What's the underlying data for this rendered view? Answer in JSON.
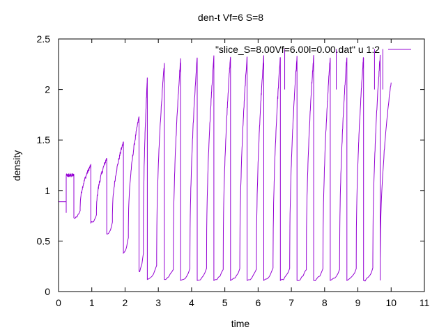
{
  "chart_data": {
    "type": "line",
    "title": "den-t Vf=6 S=8",
    "xlabel": "time",
    "ylabel": "density",
    "xlim": [
      0,
      11
    ],
    "ylim": [
      0,
      2.5
    ],
    "xticks": [
      "0",
      "1",
      "2",
      "3",
      "4",
      "5",
      "6",
      "7",
      "8",
      "9",
      "10",
      "11"
    ],
    "yticks": [
      "0",
      "0.5",
      "1",
      "1.5",
      "2",
      "2.5"
    ],
    "grid": false,
    "legend_position": "top-right",
    "series": [
      {
        "name": "\"slice_S=8.00Vf=6.00l=0.00.dat\" u 1:2",
        "color": "#9400d3",
        "cycles": [
          {
            "t_start": 0.0,
            "t_rise": 0.23,
            "high": 0.89,
            "t_peak_end": 0.23,
            "peak": 0.89,
            "low": 0.89
          },
          {
            "t_start": 0.23,
            "t_rise": 0.23,
            "high": 1.15,
            "t_peak_end": 0.46,
            "peak": 1.15,
            "low": 0.78
          },
          {
            "t_start": 0.46,
            "t_rise": 0.65,
            "high": 0.84,
            "t_peak_end": 0.97,
            "peak": 1.25,
            "low": 0.73
          },
          {
            "t_start": 0.97,
            "t_rise": 1.14,
            "high": 0.8,
            "t_peak_end": 1.45,
            "peak": 1.32,
            "low": 0.68
          },
          {
            "t_start": 1.45,
            "t_rise": 1.62,
            "high": 0.75,
            "t_peak_end": 1.95,
            "peak": 1.48,
            "low": 0.57
          },
          {
            "t_start": 1.95,
            "t_rise": 2.1,
            "high": 0.65,
            "t_peak_end": 2.42,
            "peak": 1.73,
            "low": 0.38
          },
          {
            "t_start": 2.42,
            "t_rise": 2.55,
            "high": 0.5,
            "t_peak_end": 2.67,
            "peak": 2.12,
            "low": 0.2
          },
          {
            "t_start": 2.67,
            "t_rise": 2.95,
            "high": 0.35,
            "t_peak_end": 3.18,
            "peak": 2.25,
            "low": 0.12
          },
          {
            "t_start": 3.18,
            "t_rise": 3.45,
            "high": 0.3,
            "t_peak_end": 3.67,
            "peak": 2.3,
            "low": 0.12
          },
          {
            "t_start": 3.67,
            "t_rise": 3.95,
            "high": 0.3,
            "t_peak_end": 4.17,
            "peak": 2.32,
            "low": 0.11
          },
          {
            "t_start": 4.17,
            "t_rise": 4.45,
            "high": 0.3,
            "t_peak_end": 4.67,
            "peak": 2.32,
            "low": 0.11
          },
          {
            "t_start": 4.67,
            "t_rise": 4.95,
            "high": 0.3,
            "t_peak_end": 5.17,
            "peak": 2.33,
            "low": 0.11
          },
          {
            "t_start": 5.17,
            "t_rise": 5.45,
            "high": 0.3,
            "t_peak_end": 5.67,
            "peak": 2.33,
            "low": 0.11
          },
          {
            "t_start": 5.67,
            "t_rise": 5.95,
            "high": 0.3,
            "t_peak_end": 6.17,
            "peak": 2.33,
            "low": 0.11
          },
          {
            "t_start": 6.17,
            "t_rise": 6.45,
            "high": 0.3,
            "t_peak_end": 6.67,
            "peak": 2.33,
            "low": 0.11
          },
          {
            "t_start": 6.67,
            "t_rise": 6.95,
            "high": 0.3,
            "t_peak_end": 7.17,
            "peak": 2.33,
            "low": 0.11
          },
          {
            "t_start": 7.17,
            "t_rise": 7.45,
            "high": 0.3,
            "t_peak_end": 7.67,
            "peak": 2.33,
            "low": 0.11
          },
          {
            "t_start": 7.67,
            "t_rise": 7.95,
            "high": 0.3,
            "t_peak_end": 8.17,
            "peak": 2.33,
            "low": 0.11
          },
          {
            "t_start": 8.17,
            "t_rise": 8.45,
            "high": 0.3,
            "t_peak_end": 8.67,
            "peak": 2.33,
            "low": 0.11
          },
          {
            "t_start": 8.67,
            "t_rise": 8.95,
            "high": 0.3,
            "t_peak_end": 9.17,
            "peak": 2.33,
            "low": 0.11
          },
          {
            "t_start": 9.17,
            "t_rise": 9.45,
            "high": 0.3,
            "t_peak_end": 9.67,
            "peak": 2.33,
            "low": 0.11
          }
        ],
        "final_rise": {
          "t_start": 9.67,
          "t_end": 10.0,
          "from": 0.3,
          "to": 2.08
        }
      }
    ]
  }
}
